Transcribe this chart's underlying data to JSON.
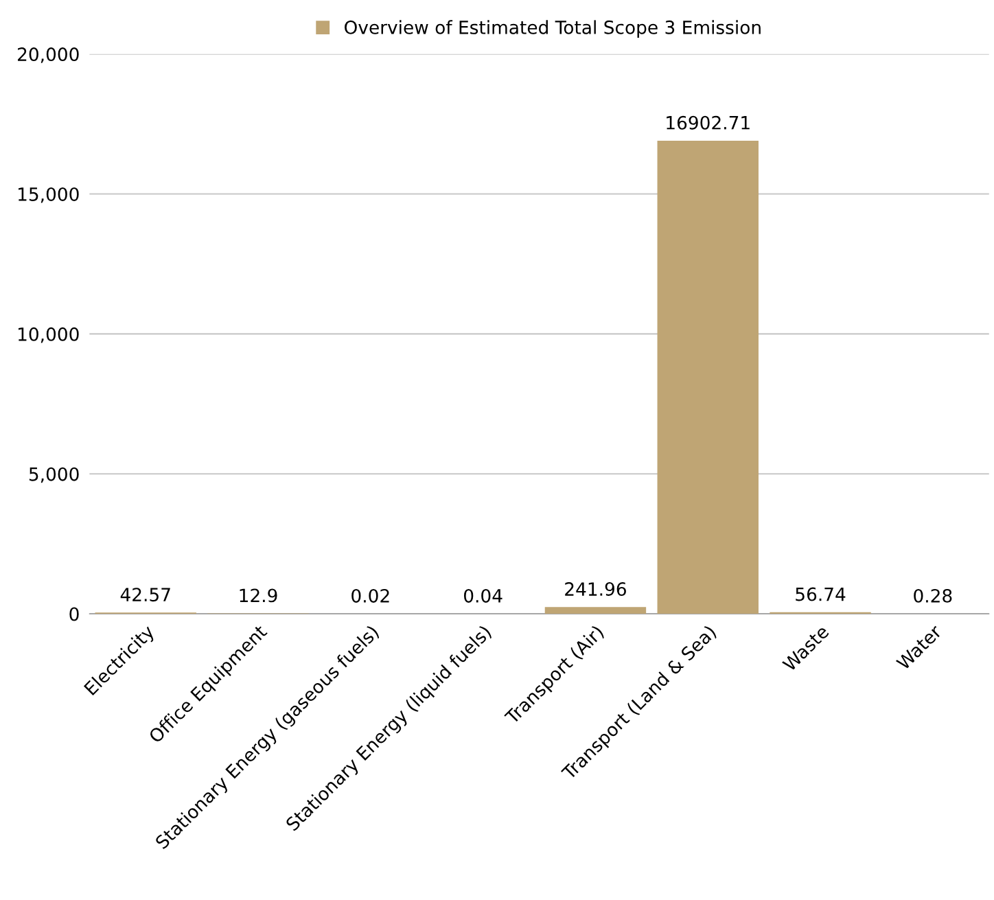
{
  "chart_data": {
    "type": "bar",
    "categories": [
      "Electricity",
      "Office Equipment",
      "Stationary Energy (gaseous fuels)",
      "Stationary Energy (liquid fuels)",
      "Transport (Air)",
      "Transport (Land & Sea)",
      "Waste",
      "Water"
    ],
    "series": [
      {
        "name": "Overview of Estimated Total Scope 3 Emission",
        "color": "#bfa574",
        "values": [
          42.57,
          12.9,
          0.02,
          0.04,
          241.96,
          16902.71,
          56.74,
          0.28
        ]
      }
    ],
    "ylim": [
      0,
      20000
    ],
    "yticks": [
      0,
      {
        "value": 5000,
        "label": "5,000"
      },
      {
        "value": 10000,
        "label": "10,000"
      },
      {
        "value": 15000,
        "label": "15,000"
      },
      {
        "value": 20000,
        "label": "20,000"
      }
    ],
    "grid": "y",
    "legend": "top",
    "data_labels": true
  }
}
